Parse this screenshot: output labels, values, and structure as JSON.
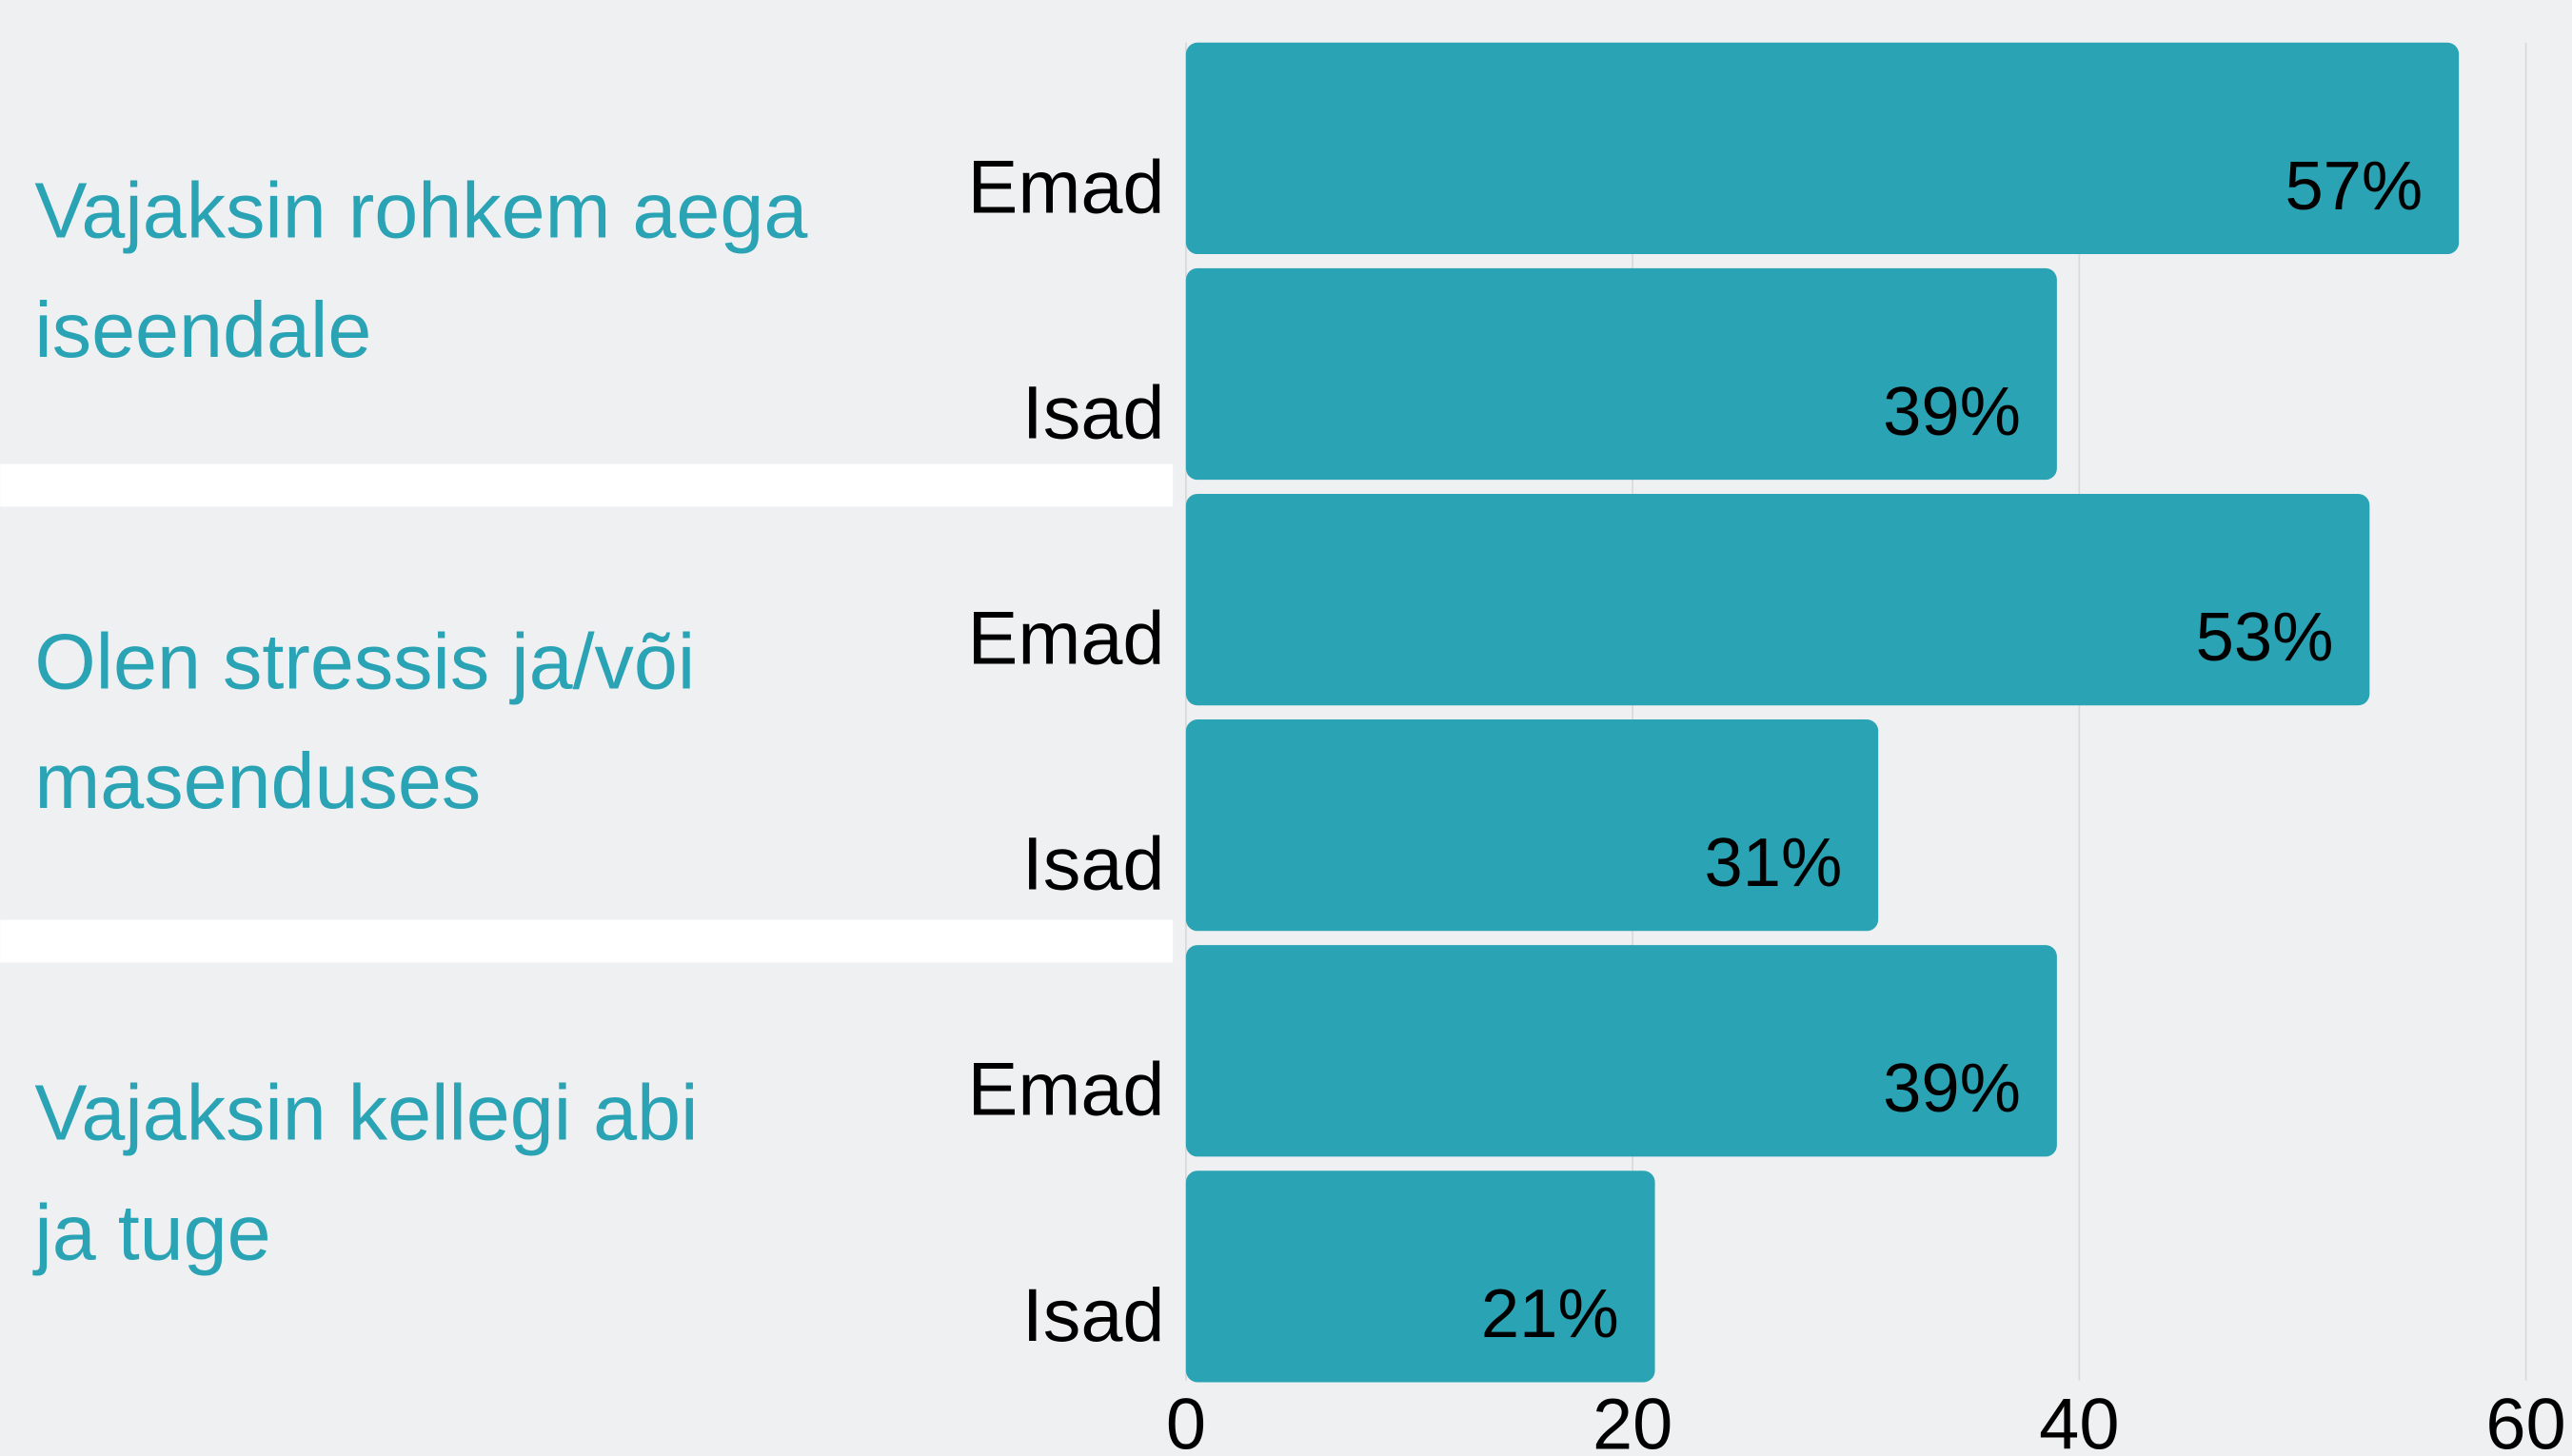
{
  "chart_data": {
    "type": "bar",
    "orientation": "horizontal",
    "groups": [
      [
        "Vajaksin rohkem aega",
        "iseendale"
      ],
      [
        "Olen stressis ja/või",
        "masenduses"
      ],
      [
        "Vajaksin kellegi abi",
        "ja tuge"
      ]
    ],
    "categories": [
      "Emad",
      "Isad",
      "Emad",
      "Isad",
      "Emad",
      "Isad"
    ],
    "values": [
      57,
      39,
      53,
      31,
      39,
      21
    ],
    "value_labels": [
      "57%",
      "39%",
      "53%",
      "31%",
      "39%",
      "21%"
    ],
    "color": "#2aa3b5",
    "group_label_color": "#2aa3b5",
    "xlim": [
      0,
      60
    ],
    "xticks": [
      0,
      20,
      40,
      60
    ],
    "grid": true
  }
}
